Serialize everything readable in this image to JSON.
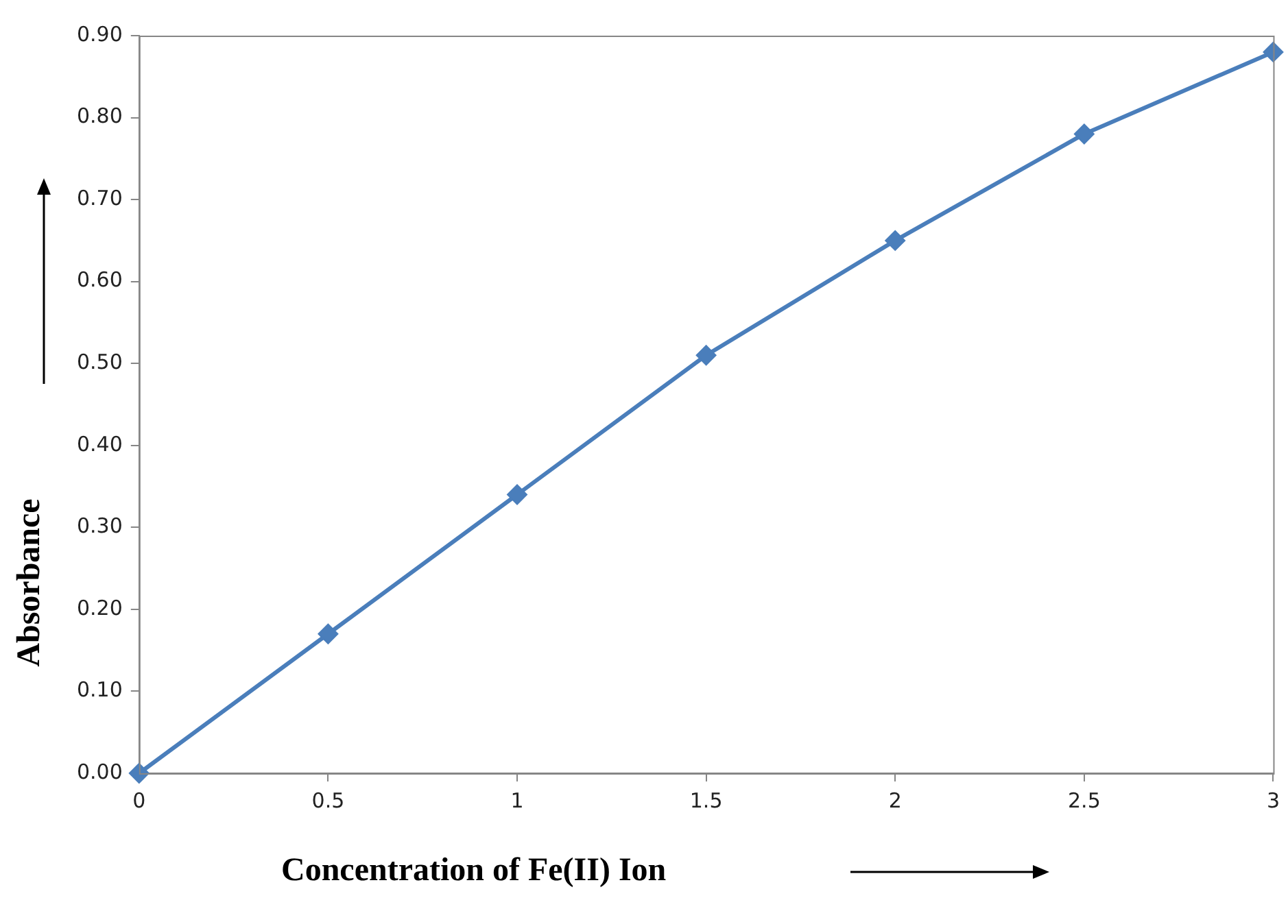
{
  "chart_data": {
    "type": "line",
    "xlabel": "Concentration of Fe(II) Ion",
    "ylabel": "Absorbance",
    "x": [
      0,
      0.5,
      1,
      1.5,
      2,
      2.5,
      3
    ],
    "series": [
      {
        "color": "#4a7ebb",
        "values": [
          0,
          0.17,
          0.34,
          0.51,
          0.65,
          0.78,
          0.88
        ]
      }
    ],
    "xlim": [
      0,
      3
    ],
    "xticks": [
      0,
      0.5,
      1,
      1.5,
      2,
      2.5,
      3
    ],
    "ylim": [
      0,
      0.9
    ],
    "yticks": [
      {
        "value": 0,
        "label": "0.00"
      },
      {
        "value": 0.1,
        "label": "0.10"
      },
      {
        "value": 0.2,
        "label": "0.20"
      },
      {
        "value": 0.3,
        "label": "0.30"
      },
      {
        "value": 0.4,
        "label": "0.40"
      },
      {
        "value": 0.5,
        "label": "0.50"
      },
      {
        "value": 0.6,
        "label": "0.60"
      },
      {
        "value": 0.7,
        "label": "0.70"
      },
      {
        "value": 0.8,
        "label": "0.80"
      },
      {
        "value": 0.9,
        "label": "0.90"
      }
    ],
    "grid": false,
    "legend": false,
    "marker": "diamond",
    "line_style": "solid"
  }
}
